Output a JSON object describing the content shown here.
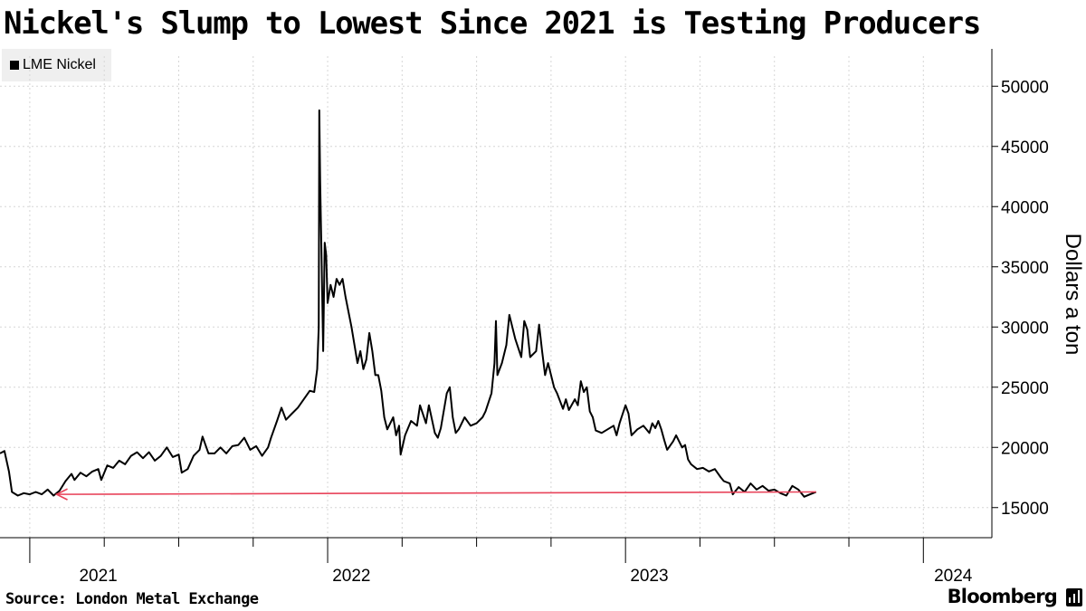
{
  "title": "Nickel's Slump to Lowest Since 2021 is Testing Producers",
  "legend": {
    "label": "LME Nickel",
    "swatch_color": "#000000"
  },
  "source": "Source: London Metal Exchange",
  "brand": "Bloomberg",
  "brand_icon": "bloomberg-terminal-icon",
  "chart_data": {
    "type": "line",
    "title": "Nickel's Slump to Lowest Since 2021 is Testing Producers",
    "ylabel": "Dollars a ton",
    "xlabel": "",
    "y_axis_side": "right",
    "ylim": [
      12500,
      52500
    ],
    "yticks": [
      15000,
      20000,
      25000,
      30000,
      35000,
      40000,
      45000,
      50000
    ],
    "xlim": [
      2020.9,
      2024.23
    ],
    "year_ticks": [
      2021,
      2022,
      2023,
      2024
    ],
    "x_year_labels": [
      {
        "label": "2021",
        "x": 2021.23
      },
      {
        "label": "2022",
        "x": 2022.08
      },
      {
        "label": "2023",
        "x": 2023.08
      },
      {
        "label": "2024",
        "x": 2024.1
      }
    ],
    "quarter_ticks": [
      2021.25,
      2021.5,
      2021.75,
      2022.25,
      2022.5,
      2022.75,
      2023.25,
      2023.5,
      2023.75
    ],
    "series": [
      {
        "name": "LME Nickel",
        "color": "#000000",
        "points": [
          [
            2020.9,
            19500
          ],
          [
            2020.915,
            19700
          ],
          [
            2020.93,
            18000
          ],
          [
            2020.94,
            16300
          ],
          [
            2020.96,
            16000
          ],
          [
            2020.98,
            16200
          ],
          [
            2021.0,
            16100
          ],
          [
            2021.02,
            16300
          ],
          [
            2021.04,
            16100
          ],
          [
            2021.06,
            16500
          ],
          [
            2021.08,
            16000
          ],
          [
            2021.1,
            16400
          ],
          [
            2021.12,
            17200
          ],
          [
            2021.14,
            17800
          ],
          [
            2021.15,
            17300
          ],
          [
            2021.17,
            17900
          ],
          [
            2021.19,
            17600
          ],
          [
            2021.21,
            18000
          ],
          [
            2021.23,
            18200
          ],
          [
            2021.24,
            17300
          ],
          [
            2021.26,
            18500
          ],
          [
            2021.28,
            18300
          ],
          [
            2021.3,
            18900
          ],
          [
            2021.32,
            18600
          ],
          [
            2021.34,
            19300
          ],
          [
            2021.36,
            19600
          ],
          [
            2021.38,
            19100
          ],
          [
            2021.4,
            19600
          ],
          [
            2021.42,
            18900
          ],
          [
            2021.44,
            19300
          ],
          [
            2021.46,
            20000
          ],
          [
            2021.48,
            19200
          ],
          [
            2021.5,
            19400
          ],
          [
            2021.51,
            17900
          ],
          [
            2021.53,
            18200
          ],
          [
            2021.55,
            19300
          ],
          [
            2021.57,
            19800
          ],
          [
            2021.58,
            20900
          ],
          [
            2021.6,
            19500
          ],
          [
            2021.62,
            19500
          ],
          [
            2021.64,
            20000
          ],
          [
            2021.66,
            19500
          ],
          [
            2021.68,
            20100
          ],
          [
            2021.7,
            20200
          ],
          [
            2021.72,
            20800
          ],
          [
            2021.74,
            19800
          ],
          [
            2021.76,
            20100
          ],
          [
            2021.78,
            19300
          ],
          [
            2021.8,
            20000
          ],
          [
            2021.81,
            20800
          ],
          [
            2021.83,
            22200
          ],
          [
            2021.845,
            23300
          ],
          [
            2021.86,
            22300
          ],
          [
            2021.88,
            22800
          ],
          [
            2021.9,
            23300
          ],
          [
            2021.92,
            24000
          ],
          [
            2021.94,
            24700
          ],
          [
            2021.955,
            24600
          ],
          [
            2021.965,
            26500
          ],
          [
            2021.97,
            30000
          ],
          [
            2021.972,
            48000
          ],
          [
            2021.975,
            42000
          ],
          [
            2021.98,
            35000
          ],
          [
            2021.985,
            28000
          ],
          [
            2021.99,
            37000
          ],
          [
            2021.995,
            36000
          ],
          [
            2022.0,
            32000
          ],
          [
            2022.01,
            33500
          ],
          [
            2022.02,
            32500
          ],
          [
            2022.03,
            34000
          ],
          [
            2022.04,
            33500
          ],
          [
            2022.05,
            34000
          ],
          [
            2022.06,
            32500
          ],
          [
            2022.08,
            30000
          ],
          [
            2022.09,
            28500
          ],
          [
            2022.1,
            27000
          ],
          [
            2022.11,
            28000
          ],
          [
            2022.12,
            26500
          ],
          [
            2022.13,
            27300
          ],
          [
            2022.14,
            29500
          ],
          [
            2022.15,
            28000
          ],
          [
            2022.16,
            26000
          ],
          [
            2022.17,
            26000
          ],
          [
            2022.18,
            24700
          ],
          [
            2022.19,
            22500
          ],
          [
            2022.2,
            21500
          ],
          [
            2022.22,
            22500
          ],
          [
            2022.23,
            21000
          ],
          [
            2022.24,
            21800
          ],
          [
            2022.245,
            19400
          ],
          [
            2022.26,
            21000
          ],
          [
            2022.28,
            22200
          ],
          [
            2022.3,
            21800
          ],
          [
            2022.31,
            23500
          ],
          [
            2022.33,
            22000
          ],
          [
            2022.34,
            23500
          ],
          [
            2022.36,
            21200
          ],
          [
            2022.37,
            20800
          ],
          [
            2022.38,
            21600
          ],
          [
            2022.4,
            24500
          ],
          [
            2022.41,
            25000
          ],
          [
            2022.42,
            22500
          ],
          [
            2022.43,
            21200
          ],
          [
            2022.44,
            21500
          ],
          [
            2022.46,
            22500
          ],
          [
            2022.48,
            21800
          ],
          [
            2022.5,
            22000
          ],
          [
            2022.52,
            22500
          ],
          [
            2022.53,
            23000
          ],
          [
            2022.55,
            24500
          ],
          [
            2022.56,
            27000
          ],
          [
            2022.565,
            30500
          ],
          [
            2022.57,
            26000
          ],
          [
            2022.585,
            27000
          ],
          [
            2022.6,
            28500
          ],
          [
            2022.61,
            31000
          ],
          [
            2022.63,
            29000
          ],
          [
            2022.65,
            27500
          ],
          [
            2022.66,
            30500
          ],
          [
            2022.67,
            29800
          ],
          [
            2022.68,
            27500
          ],
          [
            2022.7,
            28000
          ],
          [
            2022.71,
            30200
          ],
          [
            2022.72,
            28000
          ],
          [
            2022.73,
            26000
          ],
          [
            2022.74,
            27000
          ],
          [
            2022.76,
            25000
          ],
          [
            2022.77,
            24500
          ],
          [
            2022.79,
            23200
          ],
          [
            2022.8,
            24000
          ],
          [
            2022.81,
            23100
          ],
          [
            2022.83,
            24000
          ],
          [
            2022.84,
            23500
          ],
          [
            2022.85,
            25500
          ],
          [
            2022.86,
            24600
          ],
          [
            2022.87,
            25000
          ],
          [
            2022.88,
            23000
          ],
          [
            2022.89,
            22500
          ],
          [
            2022.9,
            21400
          ],
          [
            2022.92,
            21200
          ],
          [
            2022.94,
            21500
          ],
          [
            2022.96,
            21800
          ],
          [
            2022.97,
            21000
          ],
          [
            2022.98,
            22000
          ],
          [
            2023.0,
            23500
          ],
          [
            2023.01,
            22800
          ],
          [
            2023.02,
            21000
          ],
          [
            2023.04,
            21500
          ],
          [
            2023.06,
            21800
          ],
          [
            2023.08,
            21200
          ],
          [
            2023.09,
            22000
          ],
          [
            2023.1,
            21600
          ],
          [
            2023.11,
            22200
          ],
          [
            2023.12,
            21500
          ],
          [
            2023.13,
            20600
          ],
          [
            2023.14,
            19800
          ],
          [
            2023.16,
            20500
          ],
          [
            2023.17,
            21000
          ],
          [
            2023.19,
            20000
          ],
          [
            2023.2,
            20200
          ],
          [
            2023.21,
            19000
          ],
          [
            2023.22,
            18600
          ],
          [
            2023.24,
            18200
          ],
          [
            2023.26,
            18300
          ],
          [
            2023.28,
            18000
          ],
          [
            2023.3,
            18200
          ],
          [
            2023.32,
            17500
          ],
          [
            2023.33,
            17200
          ],
          [
            2023.35,
            17000
          ],
          [
            2023.36,
            16100
          ],
          [
            2023.38,
            16700
          ],
          [
            2023.4,
            16300
          ],
          [
            2023.42,
            17000
          ],
          [
            2023.44,
            16500
          ],
          [
            2023.46,
            16800
          ],
          [
            2023.48,
            16400
          ],
          [
            2023.5,
            16500
          ],
          [
            2023.52,
            16200
          ],
          [
            2023.54,
            16000
          ],
          [
            2023.56,
            16800
          ],
          [
            2023.58,
            16500
          ],
          [
            2023.6,
            15900
          ],
          [
            2023.62,
            16100
          ],
          [
            2023.64,
            16300
          ]
        ]
      }
    ],
    "annotations": [
      {
        "type": "arrow",
        "color": "#e8435a",
        "from": [
          2023.64,
          16300
        ],
        "to": [
          2021.09,
          16100
        ],
        "text": ""
      }
    ]
  }
}
